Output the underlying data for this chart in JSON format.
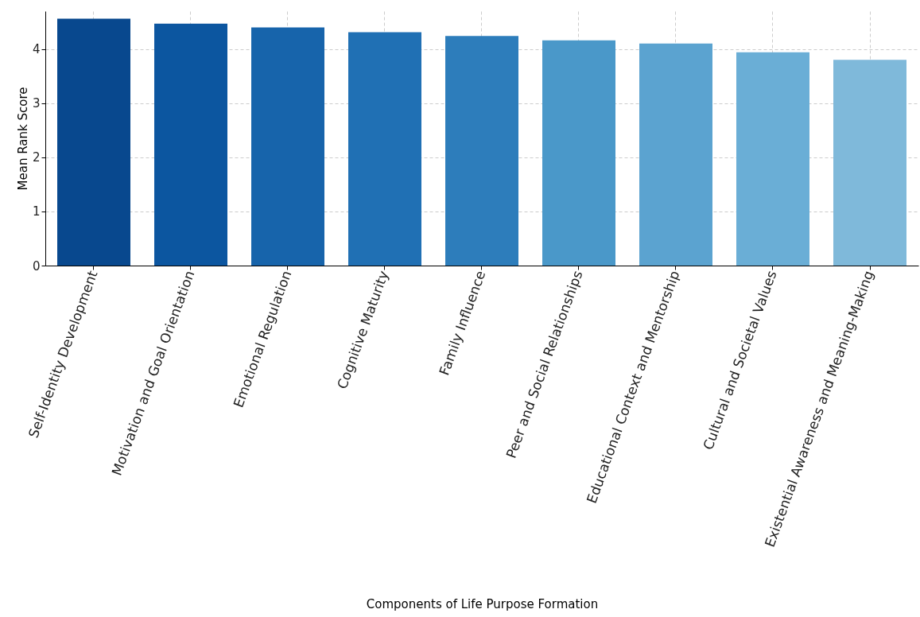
{
  "chart_data": {
    "type": "bar",
    "xlabel": "Components of Life Purpose Formation",
    "ylabel": "Mean Rank Score",
    "categories": [
      "Self-Identity Development",
      "Motivation and Goal Orientation",
      "Emotional Regulation",
      "Cognitive Maturity",
      "Family Influence",
      "Peer and Social Relationships",
      "Educational Context and Mentorship",
      "Cultural and Societal Values",
      "Existential Awareness and Meaning-Making"
    ],
    "values": [
      4.56,
      4.47,
      4.4,
      4.31,
      4.24,
      4.16,
      4.1,
      3.94,
      3.8
    ],
    "colors": [
      "#08488e",
      "#0c56a0",
      "#1764ab",
      "#2070b4",
      "#2d7dbb",
      "#4a98c9",
      "#5ba3d0",
      "#6aaed6",
      "#7fb9da"
    ],
    "ylim": [
      0,
      4.7
    ],
    "yticks": [
      0,
      1,
      2,
      3,
      4
    ],
    "grid": true
  }
}
